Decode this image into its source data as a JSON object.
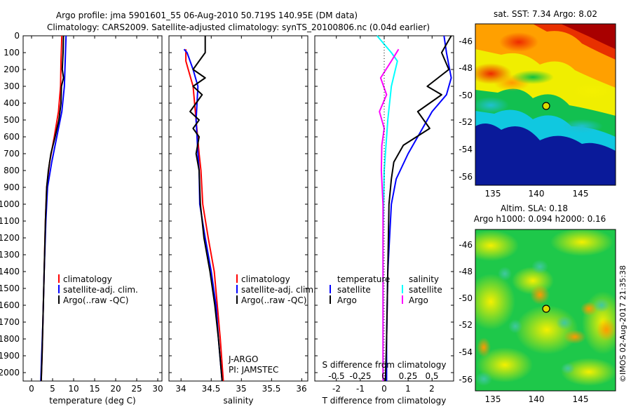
{
  "header": {
    "line1": "Argo profile: jma 5901601_55 06-Aug-2010 50.719S 140.95E (DM data)",
    "line2": "Climatology: CARS2009. Satellite-adjusted climatology: synTS_20100806.nc (0.04d earlier)"
  },
  "colors": {
    "climatology": "#ff0000",
    "satellite": "#0000ff",
    "argo": "#000000",
    "argo_salinity": "#ff00ff",
    "satellite_salinity": "#00ffff"
  },
  "depth_ticks": [
    "0",
    "100",
    "200",
    "300",
    "400",
    "500",
    "600",
    "700",
    "800",
    "900",
    "1000",
    "1100",
    "1200",
    "1300",
    "1400",
    "1500",
    "1600",
    "1700",
    "1800",
    "1900",
    "2000"
  ],
  "chart_data": [
    {
      "type": "line",
      "xlabel": "temperature (deg C)",
      "xlim": [
        -2,
        31
      ],
      "ylim": [
        2050,
        0
      ],
      "xticks": [
        "0",
        "5",
        "10",
        "15",
        "20",
        "25",
        "30"
      ],
      "legend": [
        "climatology",
        "satellite-adj. clim.",
        "Argo(..raw -QC)"
      ],
      "series": [
        {
          "name": "climatology",
          "color": "red",
          "points": [
            [
              7.2,
              0
            ],
            [
              7.0,
              150
            ],
            [
              6.9,
              300
            ],
            [
              6.4,
              450
            ],
            [
              5.4,
              600
            ],
            [
              4.3,
              750
            ],
            [
              3.6,
              900
            ],
            [
              3.3,
              1100
            ],
            [
              3.0,
              1400
            ],
            [
              2.7,
              1700
            ],
            [
              2.5,
              1900
            ],
            [
              2.3,
              2050
            ]
          ]
        },
        {
          "name": "satellite-adj. clim.",
          "color": "blue",
          "points": [
            [
              8.2,
              0
            ],
            [
              8.0,
              150
            ],
            [
              7.8,
              300
            ],
            [
              7.2,
              450
            ],
            [
              6.0,
              600
            ],
            [
              4.8,
              750
            ],
            [
              3.8,
              900
            ],
            [
              3.4,
              1100
            ],
            [
              3.0,
              1400
            ],
            [
              2.7,
              1700
            ],
            [
              2.4,
              1900
            ],
            [
              2.2,
              2050
            ]
          ]
        },
        {
          "name": "Argo(..raw -QC)",
          "color": "black",
          "points": [
            [
              7.6,
              0
            ],
            [
              7.5,
              100
            ],
            [
              7.3,
              200
            ],
            [
              7.6,
              250
            ],
            [
              7.1,
              300
            ],
            [
              7.0,
              400
            ],
            [
              6.5,
              500
            ],
            [
              5.6,
              600
            ],
            [
              4.6,
              700
            ],
            [
              4.0,
              800
            ],
            [
              3.6,
              900
            ],
            [
              3.3,
              1100
            ],
            [
              3.0,
              1400
            ],
            [
              2.7,
              1700
            ],
            [
              2.5,
              1900
            ],
            [
              2.3,
              2050
            ]
          ]
        }
      ]
    },
    {
      "type": "line",
      "xlabel": "salinity",
      "xlim": [
        33.8,
        36.1
      ],
      "ylim": [
        2050,
        0
      ],
      "xticks": [
        "34",
        "34.5",
        "35",
        "35.5",
        "36"
      ],
      "legend": [
        "climatology",
        "satellite-adj. clim.",
        "Argo(..raw -QC)"
      ],
      "annotations": [
        "J-ARGO",
        "PI: JAMSTEC"
      ],
      "series": [
        {
          "name": "climatology",
          "color": "red",
          "points": [
            [
              34.08,
              80
            ],
            [
              34.08,
              150
            ],
            [
              34.12,
              200
            ],
            [
              34.2,
              300
            ],
            [
              34.25,
              500
            ],
            [
              34.3,
              700
            ],
            [
              34.33,
              800
            ],
            [
              34.36,
              1000
            ],
            [
              34.45,
              1200
            ],
            [
              34.55,
              1400
            ],
            [
              34.6,
              1600
            ],
            [
              34.65,
              1800
            ],
            [
              34.7,
              2050
            ]
          ]
        },
        {
          "name": "satellite-adj. clim.",
          "color": "blue",
          "points": [
            [
              34.05,
              80
            ],
            [
              34.1,
              100
            ],
            [
              34.2,
              200
            ],
            [
              34.28,
              300
            ],
            [
              34.25,
              500
            ],
            [
              34.28,
              700
            ],
            [
              34.3,
              800
            ],
            [
              34.31,
              1000
            ],
            [
              34.4,
              1200
            ],
            [
              34.5,
              1400
            ],
            [
              34.58,
              1600
            ],
            [
              34.62,
              1800
            ],
            [
              34.68,
              2050
            ]
          ]
        },
        {
          "name": "Argo(..raw -QC)",
          "color": "black",
          "points": [
            [
              34.4,
              0
            ],
            [
              34.4,
              100
            ],
            [
              34.3,
              150
            ],
            [
              34.2,
              200
            ],
            [
              34.4,
              250
            ],
            [
              34.2,
              300
            ],
            [
              34.35,
              350
            ],
            [
              34.25,
              400
            ],
            [
              34.15,
              450
            ],
            [
              34.3,
              500
            ],
            [
              34.2,
              550
            ],
            [
              34.3,
              600
            ],
            [
              34.25,
              700
            ],
            [
              34.3,
              800
            ],
            [
              34.32,
              1000
            ],
            [
              34.38,
              1200
            ],
            [
              34.48,
              1400
            ],
            [
              34.56,
              1600
            ],
            [
              34.62,
              1800
            ],
            [
              34.68,
              2050
            ]
          ]
        }
      ]
    },
    {
      "type": "line",
      "xlabel": "T difference from climatology",
      "xlabel_top": "S difference from climatology",
      "xlim": [
        -2.9,
        2.9
      ],
      "ylim": [
        2050,
        0
      ],
      "xticks": [
        "-2",
        "-1",
        "0",
        "1",
        "2"
      ],
      "xticks_s": [
        "-0.5",
        "-0.25",
        "0",
        "0.25",
        "0.5"
      ],
      "legend_groups": [
        {
          "title": "temperature",
          "items": [
            "satellite",
            "Argo"
          ]
        },
        {
          "title": "salinity",
          "items": [
            "satellite",
            "Argo"
          ]
        }
      ],
      "series": [
        {
          "name": "temperature satellite",
          "color": "blue",
          "points": [
            [
              2.5,
              0
            ],
            [
              2.6,
              100
            ],
            [
              2.8,
              250
            ],
            [
              2.6,
              350
            ],
            [
              2.0,
              450
            ],
            [
              1.6,
              550
            ],
            [
              1.0,
              700
            ],
            [
              0.5,
              850
            ],
            [
              0.3,
              1000
            ],
            [
              0.15,
              1400
            ],
            [
              0.1,
              1800
            ],
            [
              0.1,
              2050
            ]
          ]
        },
        {
          "name": "temperature Argo",
          "color": "black",
          "points": [
            [
              2.8,
              0
            ],
            [
              2.4,
              100
            ],
            [
              2.7,
              200
            ],
            [
              1.8,
              300
            ],
            [
              2.4,
              350
            ],
            [
              1.4,
              450
            ],
            [
              1.9,
              550
            ],
            [
              0.8,
              650
            ],
            [
              0.4,
              750
            ],
            [
              0.3,
              850
            ],
            [
              0.2,
              1000
            ],
            [
              0.15,
              1400
            ],
            [
              0.1,
              1800
            ],
            [
              0.05,
              2050
            ]
          ]
        },
        {
          "name": "salinity satellite",
          "color": "cyan",
          "points": [
            [
              -0.3,
              0
            ],
            [
              0.3,
              100
            ],
            [
              0.55,
              150
            ],
            [
              0.3,
              300
            ],
            [
              0.15,
              500
            ],
            [
              0.0,
              800
            ],
            [
              -0.05,
              1200
            ],
            [
              -0.05,
              2050
            ]
          ]
        },
        {
          "name": "salinity Argo",
          "color": "magenta",
          "points": [
            [
              0.6,
              80
            ],
            [
              0.3,
              150
            ],
            [
              -0.15,
              250
            ],
            [
              0.1,
              350
            ],
            [
              -0.2,
              450
            ],
            [
              0.0,
              550
            ],
            [
              -0.1,
              650
            ],
            [
              -0.12,
              800
            ],
            [
              -0.05,
              1000
            ],
            [
              -0.05,
              2050
            ]
          ]
        }
      ]
    },
    {
      "type": "heatmap",
      "title": "sat. SST: 7.34 Argo: 8.02",
      "xlim": [
        133,
        149
      ],
      "ylim": [
        -56.8,
        -44.8
      ],
      "xticks": [
        "135",
        "140",
        "145"
      ],
      "yticks": [
        "-46",
        "-48",
        "-50",
        "-52",
        "-54",
        "-56"
      ],
      "marker": [
        140.95,
        -50.72
      ]
    },
    {
      "type": "heatmap",
      "title": "Altim. SLA: 0.18",
      "subtitle": "Argo h1000: 0.094 h2000: 0.16",
      "xlim": [
        133,
        149
      ],
      "ylim": [
        -56.6,
        -44.6
      ],
      "xticks": [
        "135",
        "140",
        "145"
      ],
      "yticks": [
        "-46",
        "-48",
        "-50",
        "-52",
        "-54",
        "-56"
      ],
      "marker": [
        140.95,
        -50.72
      ]
    }
  ],
  "footer": {
    "stamp": "©IMOS 02-Aug-2017 21:35:38"
  }
}
